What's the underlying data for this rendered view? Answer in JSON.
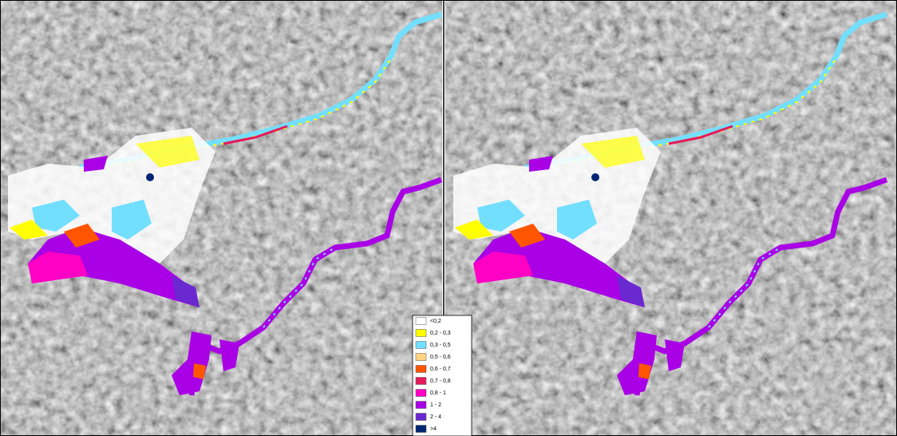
{
  "legend": {
    "items": [
      {
        "label": "<0,2",
        "color": "#ffffff"
      },
      {
        "label": "0,2 - 0,3",
        "color": "#ffff00"
      },
      {
        "label": "0,3 - 0,5",
        "color": "#73dfff"
      },
      {
        "label": "0,5 - 0,6",
        "color": "#ffd37f"
      },
      {
        "label": "0,6 - 0,7",
        "color": "#ff5500"
      },
      {
        "label": "0,7 - 0,8",
        "color": "#e6195a"
      },
      {
        "label": "0,8 - 1",
        "color": "#ff00c5"
      },
      {
        "label": "1 - 2",
        "color": "#a900e6"
      },
      {
        "label": "2 - 4",
        "color": "#6a28d0"
      },
      {
        "label": ">4",
        "color": "#002673"
      }
    ]
  }
}
